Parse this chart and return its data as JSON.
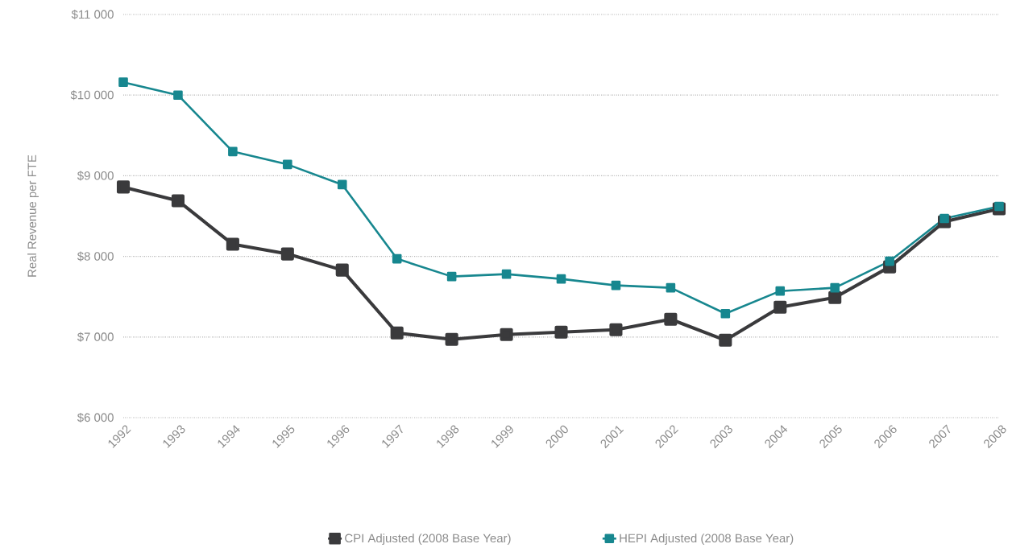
{
  "chart_data": {
    "type": "line",
    "ylabel": "Real Revenue per FTE",
    "categories": [
      "1992",
      "1993",
      "1994",
      "1995",
      "1996",
      "1997",
      "1998",
      "1999",
      "2000",
      "2001",
      "2002",
      "2003",
      "2004",
      "2005",
      "2006",
      "2007",
      "2008"
    ],
    "series": [
      {
        "name": "CPI Adjusted (2008 Base Year)",
        "color": "#3a3a3c",
        "values": [
          8860,
          8690,
          8150,
          8030,
          7830,
          7050,
          6970,
          7030,
          7060,
          7090,
          7220,
          6960,
          7370,
          7490,
          7870,
          8430,
          8590
        ]
      },
      {
        "name": "HEPI Adjusted (2008 Base Year)",
        "color": "#17878f",
        "values": [
          10160,
          10000,
          9300,
          9140,
          8890,
          7970,
          7750,
          7780,
          7720,
          7640,
          7610,
          7290,
          7570,
          7610,
          7940,
          8470,
          8620
        ]
      }
    ],
    "ylim": [
      6000,
      11000
    ],
    "yticks": [
      {
        "value": 6000,
        "label": "$6 000"
      },
      {
        "value": 7000,
        "label": "$7 000"
      },
      {
        "value": 8000,
        "label": "$8 000"
      },
      {
        "value": 9000,
        "label": "$9 000"
      },
      {
        "value": 10000,
        "label": "$10 000"
      },
      {
        "value": 11000,
        "label": "$11 000"
      }
    ],
    "grid": "y",
    "legend": "bottom",
    "marker": "square",
    "line_style": "solid"
  }
}
